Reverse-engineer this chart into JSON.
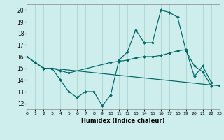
{
  "xlabel": "Humidex (Indice chaleur)",
  "xlim": [
    0,
    23
  ],
  "ylim": [
    11.5,
    20.5
  ],
  "yticks": [
    12,
    13,
    14,
    15,
    16,
    17,
    18,
    19,
    20
  ],
  "xticks": [
    0,
    1,
    2,
    3,
    4,
    5,
    6,
    7,
    8,
    9,
    10,
    11,
    12,
    13,
    14,
    15,
    16,
    17,
    18,
    19,
    20,
    21,
    22,
    23
  ],
  "bg_color": "#cdeeed",
  "grid_color": "#b0d8d4",
  "line_color": "#006666",
  "line1_x": [
    0,
    1,
    2,
    3,
    4,
    5,
    6,
    7,
    8,
    9,
    10,
    11,
    12,
    13,
    14,
    15,
    16,
    17,
    18,
    19,
    20,
    21,
    22
  ],
  "line1_y": [
    16,
    15.5,
    15,
    15,
    14,
    13,
    12.5,
    13,
    13,
    11.8,
    12.7,
    15.7,
    16.4,
    18.3,
    17.2,
    17.2,
    20.0,
    19.8,
    19.4,
    16.5,
    15.2,
    14.7,
    13.5
  ],
  "line2_x": [
    0,
    2,
    3,
    4,
    5,
    10,
    11,
    12,
    13,
    14,
    15,
    16,
    17,
    18,
    19,
    20,
    21,
    22
  ],
  "line2_y": [
    16,
    15,
    15,
    14.8,
    14.6,
    15.5,
    15.6,
    15.7,
    15.9,
    16.0,
    16.0,
    16.1,
    16.3,
    16.5,
    16.6,
    14.3,
    15.2,
    13.8
  ],
  "line3_x": [
    2,
    3,
    23
  ],
  "line3_y": [
    15,
    15,
    13.5
  ]
}
